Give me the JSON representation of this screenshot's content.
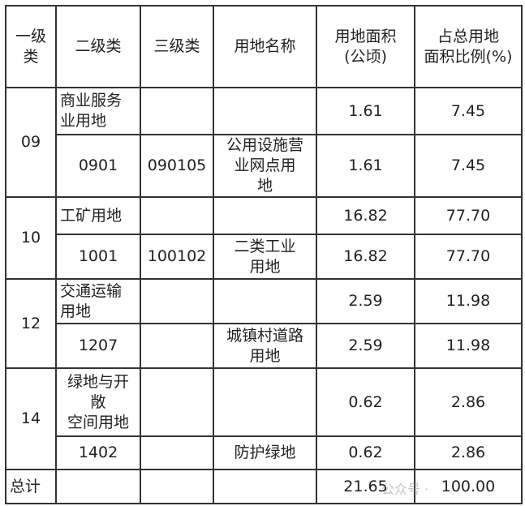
{
  "headers": [
    "一级类",
    "二级类",
    "三级类",
    "用地名称",
    "用地面积(公顷)",
    "占总用地面积比例(%)"
  ],
  "header_display": {
    "c1": [
      "一级",
      "类"
    ],
    "c5": [
      "用地面积",
      "(公顷)"
    ],
    "c6": [
      "占总用地",
      "面积比例(%)"
    ]
  },
  "groups": [
    {
      "code": "09",
      "rows": [
        {
          "l2": "商业服务业用地",
          "l3": "",
          "name": "",
          "area": "1.61",
          "pct": "7.45"
        },
        {
          "l2": "0901",
          "l3": "090105",
          "name": "公用设施营业网点用地",
          "area": "1.61",
          "pct": "7.45"
        }
      ]
    },
    {
      "code": "10",
      "rows": [
        {
          "l2": "工矿用地",
          "l3": "",
          "name": "",
          "area": "16.82",
          "pct": "77.70"
        },
        {
          "l2": "1001",
          "l3": "100102",
          "name": "二类工业用地",
          "area": "16.82",
          "pct": "77.70"
        }
      ]
    },
    {
      "code": "12",
      "rows": [
        {
          "l2": "交通运输用地",
          "l3": "",
          "name": "",
          "area": "2.59",
          "pct": "11.98"
        },
        {
          "l2": "1207",
          "l3": "",
          "name": "城镇村道路用地",
          "area": "2.59",
          "pct": "11.98"
        }
      ]
    },
    {
      "code": "14",
      "rows": [
        {
          "l2": "绿地与开敞空间用地",
          "l3": "",
          "name": "",
          "area": "0.62",
          "pct": "2.86"
        },
        {
          "l2": "1402",
          "l3": "",
          "name": "防护绿地",
          "area": "0.62",
          "pct": "2.86"
        }
      ]
    }
  ],
  "total": {
    "label": "总计",
    "area": "21.65",
    "pct": "100.00"
  },
  "watermark": "公众号 ·"
}
